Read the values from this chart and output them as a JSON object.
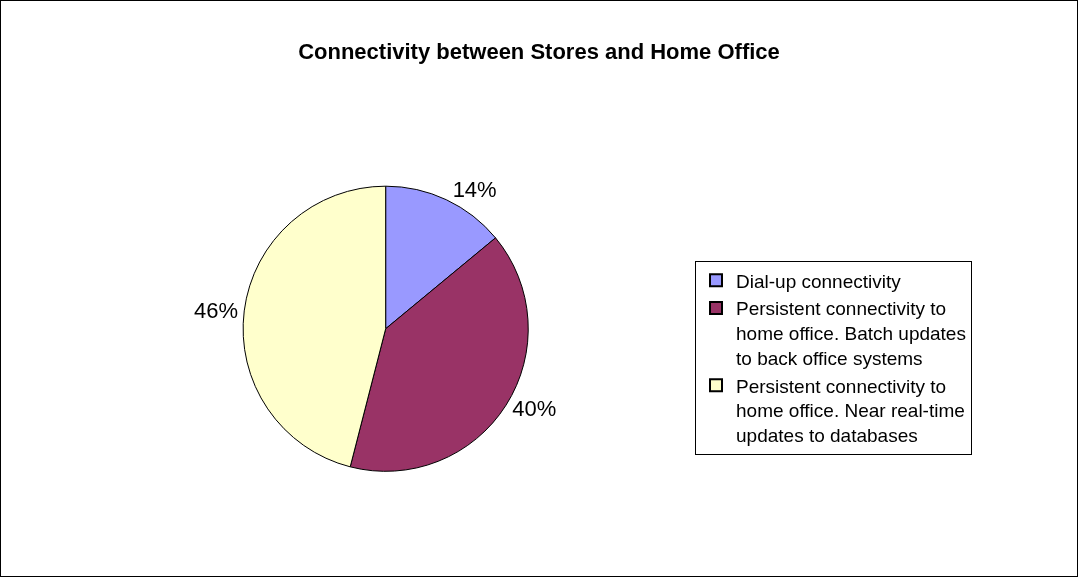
{
  "chart_data": {
    "type": "pie",
    "title": "Connectivity between Stores and Home Office",
    "categories": [
      "Dial-up connectivity",
      "Persistent connectivity to home office. Batch updates to back office systems",
      "Persistent connectivity to home office. Near real-time updates to databases"
    ],
    "values": [
      14,
      40,
      46
    ],
    "colors": [
      "#9999ff",
      "#993366",
      "#ffffcc"
    ],
    "value_labels": [
      "14%",
      "40%",
      "46%"
    ],
    "legend": "right"
  }
}
